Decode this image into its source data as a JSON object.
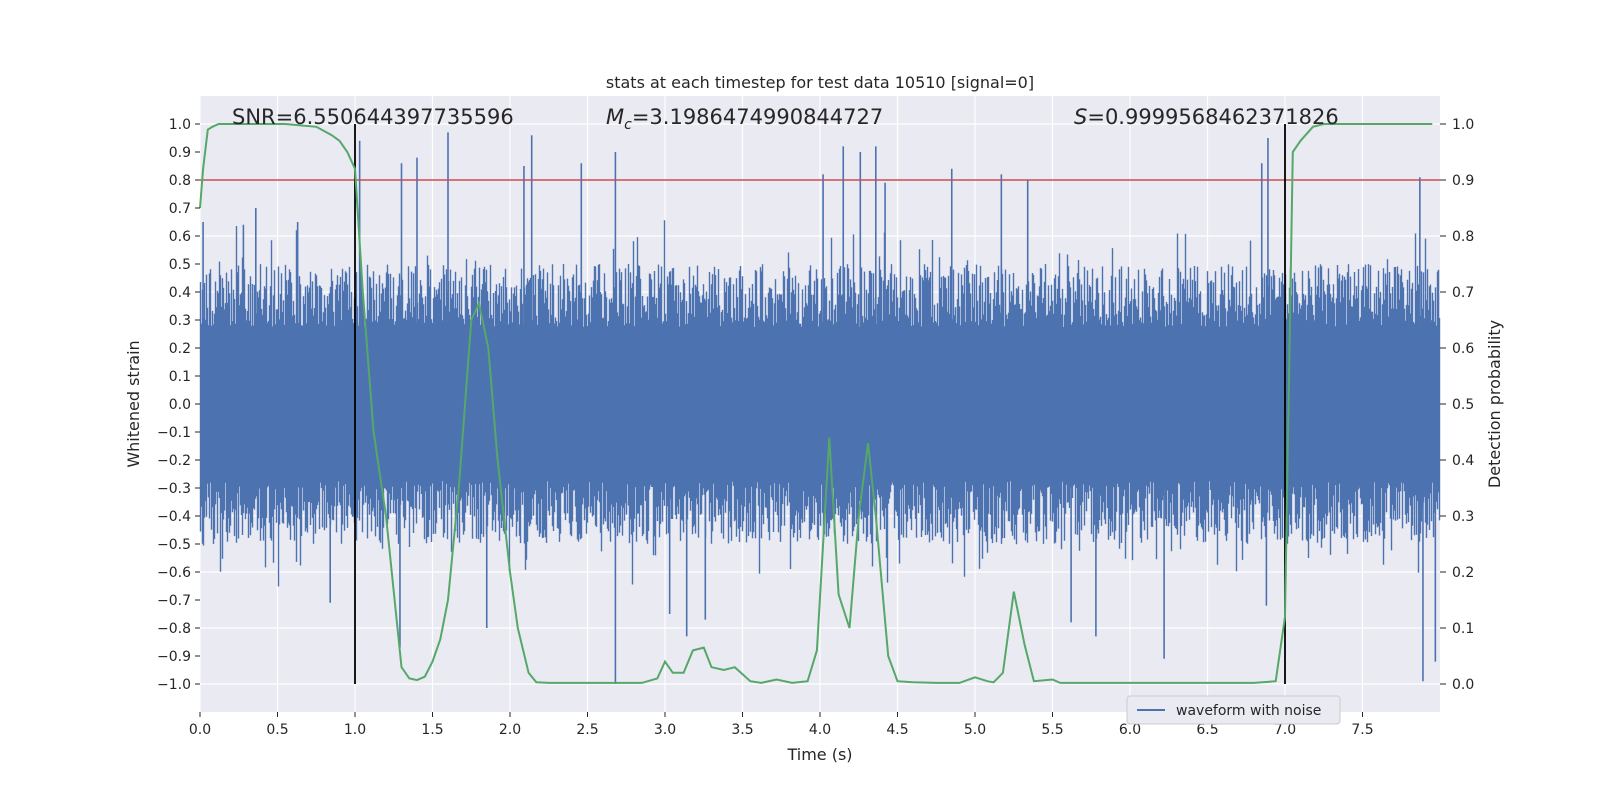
{
  "chart_data": {
    "type": "line",
    "title": "stats at each timestep for test data 10510 [signal=0]",
    "xlabel": "Time (s)",
    "ylabel": "Whitened strain",
    "ylabel_right": "Detection probability",
    "xlim": [
      0.0,
      8.0
    ],
    "ylim": [
      -1.1,
      1.1
    ],
    "ylim_right": [
      -0.05,
      1.05
    ],
    "x_ticks": [
      "0.0",
      "0.5",
      "1.0",
      "1.5",
      "2.0",
      "2.5",
      "3.0",
      "3.5",
      "4.0",
      "4.5",
      "5.0",
      "5.5",
      "6.0",
      "6.5",
      "7.0",
      "7.5"
    ],
    "y_ticks": [
      "−1.0",
      "−0.9",
      "−0.8",
      "−0.7",
      "−0.6",
      "−0.5",
      "−0.4",
      "−0.3",
      "−0.2",
      "−0.1",
      "0.0",
      "0.1",
      "0.2",
      "0.3",
      "0.4",
      "0.5",
      "0.6",
      "0.7",
      "0.8",
      "0.9",
      "1.0"
    ],
    "y_right_ticks": [
      "0.0",
      "0.1",
      "0.2",
      "0.3",
      "0.4",
      "0.5",
      "0.6",
      "0.7",
      "0.8",
      "0.9",
      "1.0"
    ],
    "grid": true,
    "legend": {
      "placement": "lower-right",
      "entries": [
        "waveform with noise"
      ]
    },
    "annotations": {
      "snr_label": "SNR=6.550644397735596",
      "mc_symbol": "M",
      "mc_sub": "c",
      "mc_value": "=3.1986474990844727",
      "s_symbol": "S",
      "s_value": "=0.9999568462371826"
    },
    "threshold_right": 0.9,
    "vlines_x": [
      1.0,
      7.0
    ],
    "noise_envelope": {
      "typical_max": 0.5,
      "typical_min": -0.5
    },
    "waveform_peaks": [
      {
        "t": 0.02,
        "v": 0.65
      },
      {
        "t": 0.28,
        "v": 0.64
      },
      {
        "t": 0.36,
        "v": 0.7
      },
      {
        "t": 0.63,
        "v": 0.65
      },
      {
        "t": 0.84,
        "v": -0.71
      },
      {
        "t": 1.03,
        "v": 0.94
      },
      {
        "t": 1.29,
        "v": -0.87
      },
      {
        "t": 1.3,
        "v": 0.86
      },
      {
        "t": 1.4,
        "v": 0.88
      },
      {
        "t": 1.6,
        "v": 0.97
      },
      {
        "t": 1.85,
        "v": -0.8
      },
      {
        "t": 2.09,
        "v": 0.85
      },
      {
        "t": 2.14,
        "v": 0.96
      },
      {
        "t": 2.46,
        "v": 0.86
      },
      {
        "t": 2.68,
        "v": 0.9
      },
      {
        "t": 2.68,
        "v": -1.0
      },
      {
        "t": 3.03,
        "v": -0.75
      },
      {
        "t": 3.14,
        "v": -0.83
      },
      {
        "t": 3.26,
        "v": -0.77
      },
      {
        "t": 4.02,
        "v": 0.82
      },
      {
        "t": 4.15,
        "v": 0.92
      },
      {
        "t": 4.26,
        "v": 0.9
      },
      {
        "t": 4.36,
        "v": 0.92
      },
      {
        "t": 4.42,
        "v": 0.79
      },
      {
        "t": 4.85,
        "v": 0.84
      },
      {
        "t": 5.17,
        "v": 0.82
      },
      {
        "t": 5.34,
        "v": 0.8
      },
      {
        "t": 5.62,
        "v": -0.78
      },
      {
        "t": 5.78,
        "v": -0.83
      },
      {
        "t": 6.22,
        "v": -0.91
      },
      {
        "t": 6.85,
        "v": 0.86
      },
      {
        "t": 6.88,
        "v": -0.72
      },
      {
        "t": 6.89,
        "v": 0.95
      },
      {
        "t": 7.89,
        "v": -0.99
      },
      {
        "t": 7.87,
        "v": 0.81
      },
      {
        "t": 7.97,
        "v": -0.92
      }
    ],
    "series": [
      {
        "name": "Detection probability",
        "axis": "right",
        "color": "#55a868",
        "x": [
          0.0,
          0.02,
          0.05,
          0.08,
          0.12,
          0.2,
          0.35,
          0.55,
          0.75,
          0.85,
          0.9,
          0.95,
          1.0,
          1.05,
          1.12,
          1.2,
          1.3,
          1.35,
          1.4,
          1.45,
          1.5,
          1.55,
          1.6,
          1.67,
          1.75,
          1.8,
          1.86,
          1.92,
          2.0,
          2.05,
          2.12,
          2.17,
          2.25,
          2.35,
          2.5,
          2.7,
          2.85,
          2.95,
          3.0,
          3.05,
          3.12,
          3.18,
          3.25,
          3.3,
          3.38,
          3.45,
          3.55,
          3.62,
          3.72,
          3.82,
          3.92,
          3.98,
          4.06,
          4.12,
          4.19,
          4.25,
          4.31,
          4.36,
          4.44,
          4.5,
          4.6,
          4.75,
          4.9,
          5.0,
          5.08,
          5.12,
          5.18,
          5.25,
          5.32,
          5.38,
          5.5,
          5.55,
          5.65,
          5.85,
          6.1,
          6.5,
          6.8,
          6.94,
          7.0,
          7.05,
          7.1,
          7.18,
          7.25,
          7.5,
          7.7,
          7.95
        ],
        "values": [
          0.85,
          0.92,
          0.99,
          0.995,
          1.0,
          1.0,
          1.0,
          1.0,
          0.995,
          0.98,
          0.97,
          0.95,
          0.92,
          0.7,
          0.45,
          0.3,
          0.03,
          0.01,
          0.007,
          0.013,
          0.04,
          0.08,
          0.15,
          0.35,
          0.65,
          0.68,
          0.6,
          0.4,
          0.2,
          0.1,
          0.02,
          0.003,
          0.002,
          0.002,
          0.002,
          0.002,
          0.002,
          0.01,
          0.04,
          0.02,
          0.02,
          0.06,
          0.065,
          0.03,
          0.025,
          0.03,
          0.005,
          0.002,
          0.008,
          0.002,
          0.005,
          0.06,
          0.44,
          0.16,
          0.1,
          0.3,
          0.43,
          0.3,
          0.05,
          0.005,
          0.003,
          0.002,
          0.002,
          0.012,
          0.005,
          0.003,
          0.02,
          0.165,
          0.07,
          0.005,
          0.008,
          0.002,
          0.002,
          0.002,
          0.002,
          0.002,
          0.002,
          0.005,
          0.12,
          0.95,
          0.97,
          0.995,
          1.0,
          1.0,
          1.0,
          1.0
        ]
      }
    ]
  },
  "colors": {
    "axes_bg": "#eaeaf2",
    "grid": "#ffffff",
    "waveform": "#4c72b0",
    "probability": "#55a868",
    "threshold": "#c44e52",
    "vline": "#000000"
  }
}
